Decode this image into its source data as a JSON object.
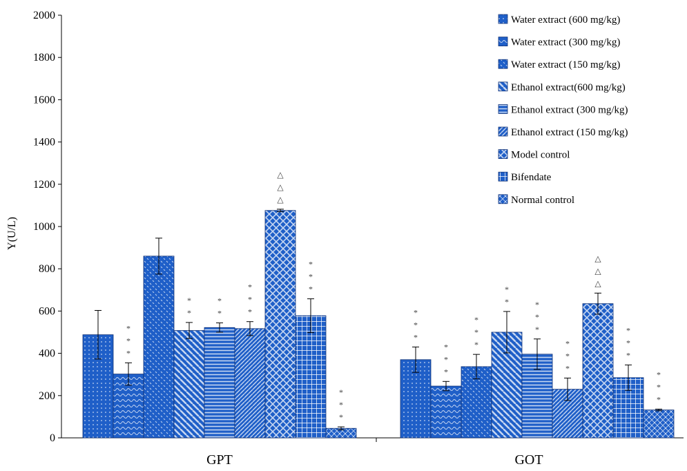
{
  "chart_data": {
    "type": "bar",
    "title": "",
    "ylabel": "Y(U/L)",
    "xlabel": "",
    "ylim": [
      0,
      2000
    ],
    "yticks": [
      0,
      200,
      400,
      600,
      800,
      1000,
      1200,
      1400,
      1600,
      1800,
      2000
    ],
    "categories": [
      "GPT",
      "GOT"
    ],
    "grid": false,
    "legend_position": "top-right",
    "bar_color": "#1f5fc8",
    "series": [
      {
        "name": "Water extract (600 mg/kg)",
        "pattern": "dots",
        "values": [
          488,
          370
        ],
        "errors": [
          115,
          60
        ],
        "marks": [
          "",
          "* * *"
        ]
      },
      {
        "name": "Water extract (300 mg/kg)",
        "pattern": "waves",
        "values": [
          302,
          245
        ],
        "errors": [
          53,
          22
        ],
        "marks": [
          "* * *",
          "* * *"
        ]
      },
      {
        "name": "Water extract (150 mg/kg)",
        "pattern": "dashes",
        "values": [
          860,
          337
        ],
        "errors": [
          85,
          58
        ],
        "marks": [
          "",
          "* * *"
        ]
      },
      {
        "name": "Ethanol extract(600 mg/kg)",
        "pattern": "diag-wide",
        "values": [
          508,
          500
        ],
        "errors": [
          38,
          98
        ],
        "marks": [
          "* *",
          "* *"
        ]
      },
      {
        "name": "Ethanol extract (300 mg/kg)",
        "pattern": "hlines",
        "values": [
          522,
          396
        ],
        "errors": [
          22,
          72
        ],
        "marks": [
          "* *",
          "* * *"
        ]
      },
      {
        "name": "Ethanol extract (150 mg/kg)",
        "pattern": "diag-fine",
        "values": [
          517,
          230
        ],
        "errors": [
          33,
          53
        ],
        "marks": [
          "* * *",
          "* * *"
        ]
      },
      {
        "name": "Model control",
        "pattern": "crosshatch",
        "values": [
          1076,
          635
        ],
        "errors": [
          6,
          50
        ],
        "marks": [
          "△ △ △",
          "△ △ △"
        ]
      },
      {
        "name": "Bifendate",
        "pattern": "grid",
        "values": [
          578,
          285
        ],
        "errors": [
          80,
          60
        ],
        "marks": [
          "* * *",
          "* * *"
        ]
      },
      {
        "name": "Normal control",
        "pattern": "diamond",
        "values": [
          45,
          132
        ],
        "errors": [
          7,
          4
        ],
        "marks": [
          "* * *",
          "* * *"
        ]
      }
    ]
  }
}
